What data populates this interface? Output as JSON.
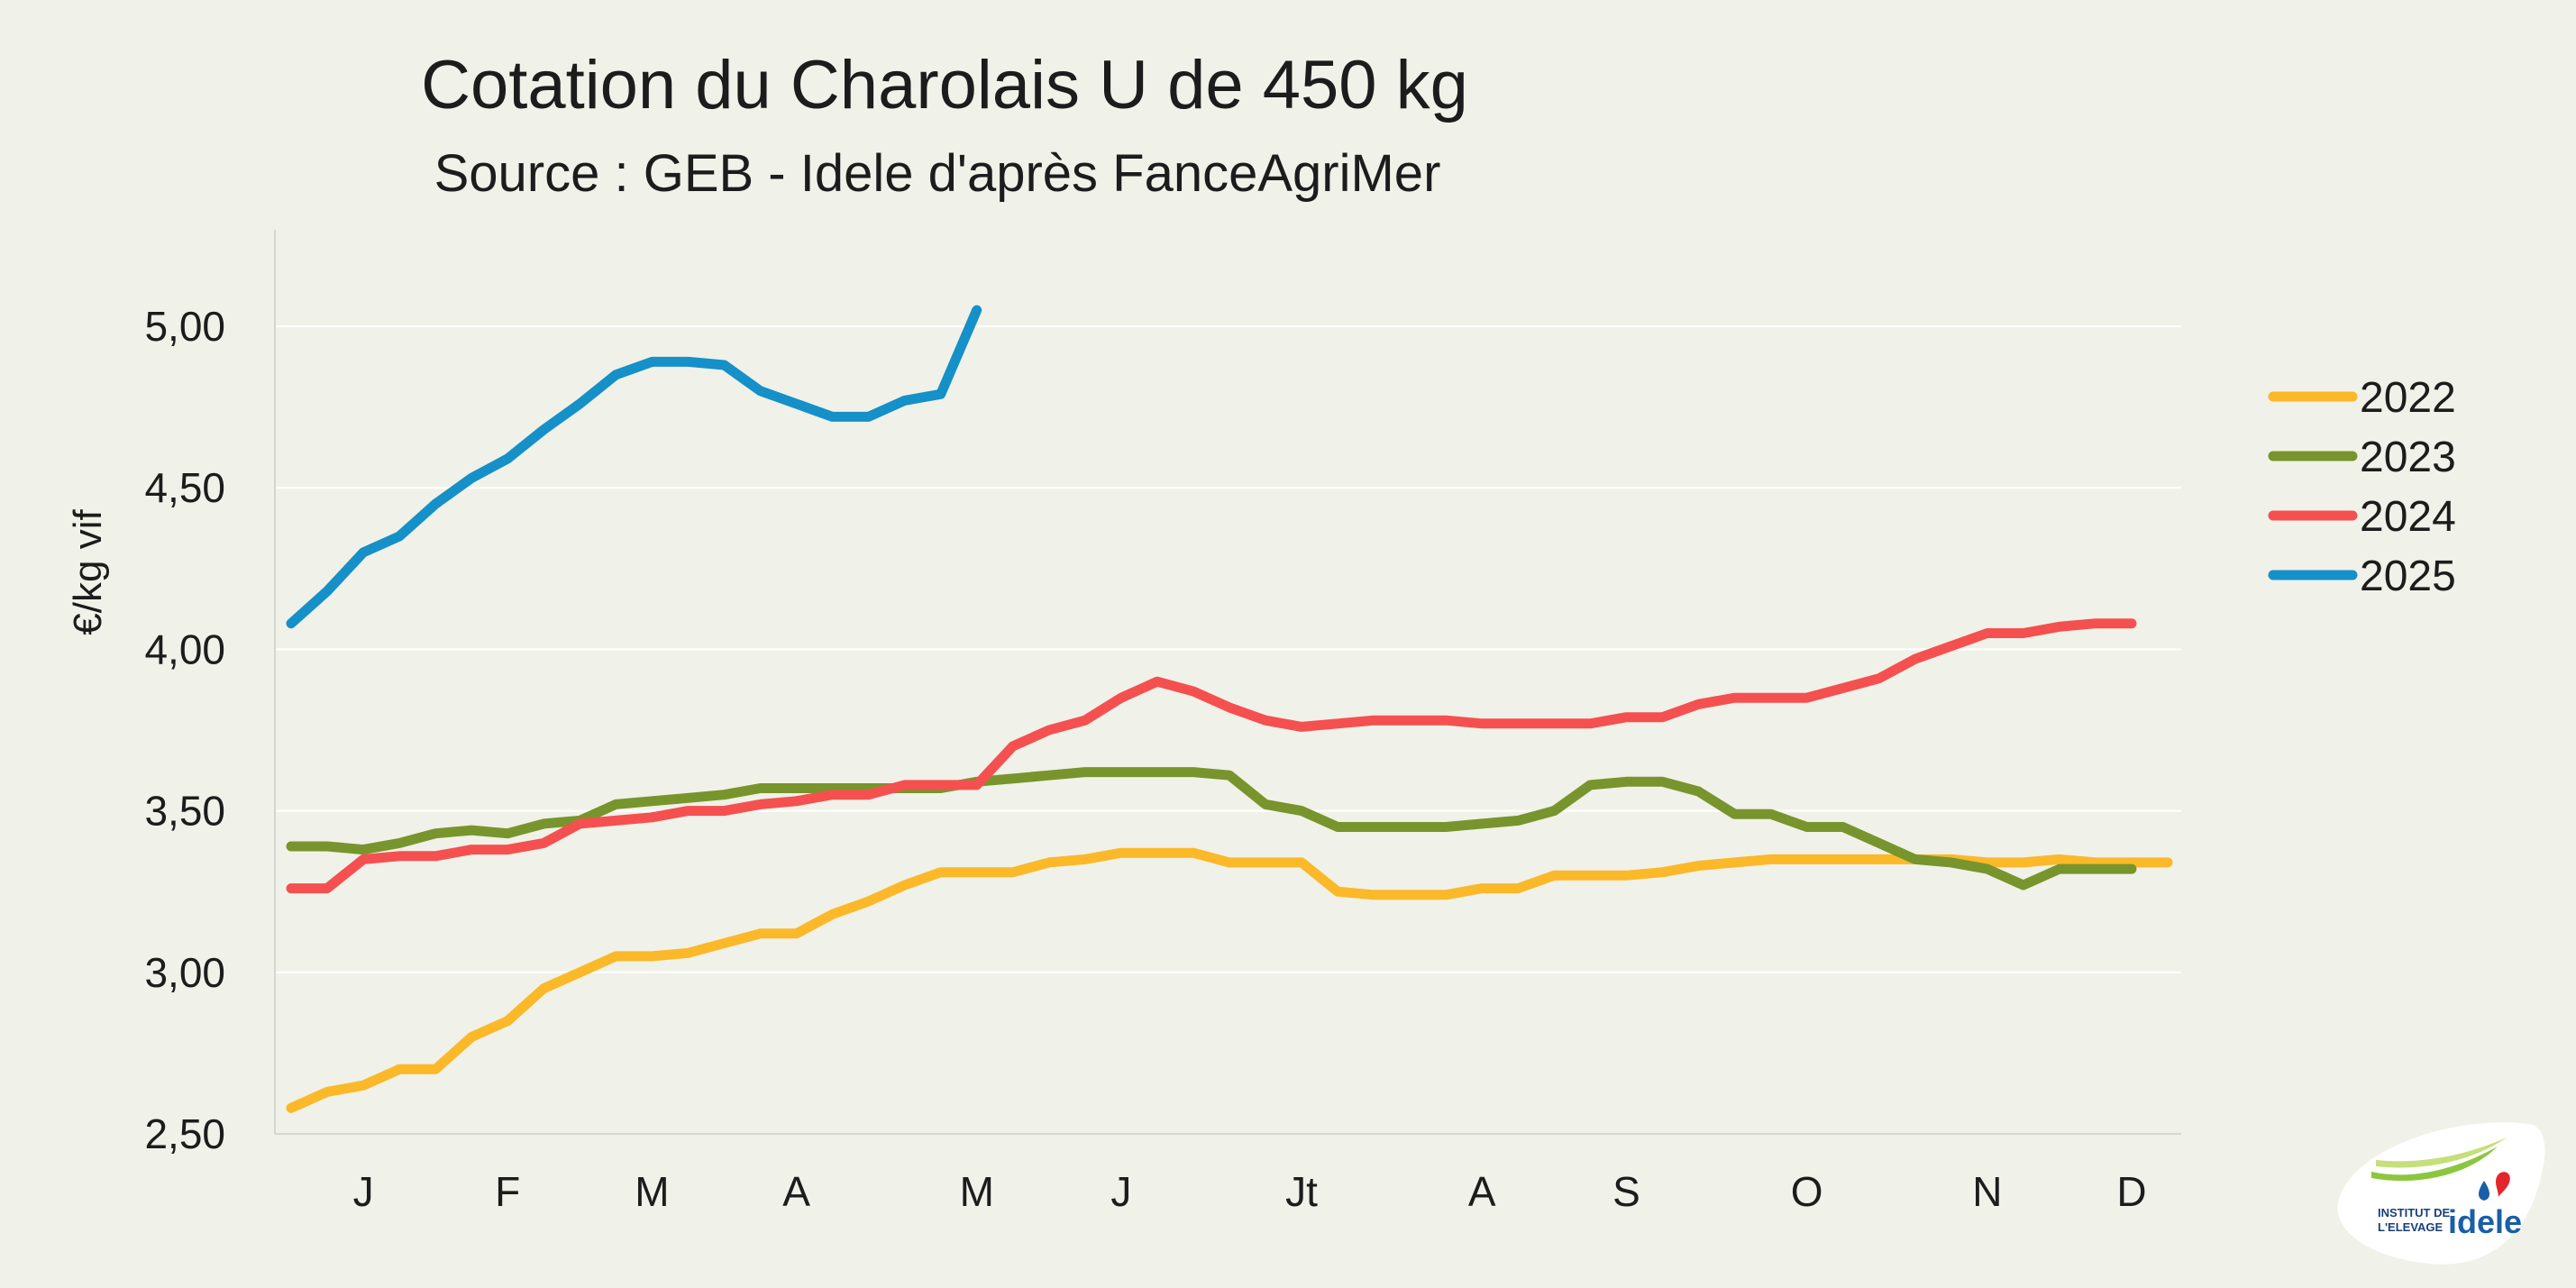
{
  "chart_data": {
    "type": "line",
    "title": "Cotation du Charolais U de 450 kg",
    "subtitle": "Source : GEB - Idele d'après FanceAgriMer",
    "ylabel": "€/kg vif",
    "xlabel": "",
    "ylim": [
      2.5,
      5.3
    ],
    "yticks": [
      2.5,
      3.0,
      3.5,
      4.0,
      4.5,
      5.0
    ],
    "ytick_labels": [
      "2,50",
      "3,00",
      "3,50",
      "4,00",
      "4,50",
      "5,00"
    ],
    "grid": true,
    "x_weeks": 53,
    "month_ticks": [
      {
        "label": "J",
        "week": 3
      },
      {
        "label": "F",
        "week": 7
      },
      {
        "label": "M",
        "week": 11
      },
      {
        "label": "A",
        "week": 15
      },
      {
        "label": "M",
        "week": 20
      },
      {
        "label": "J",
        "week": 24
      },
      {
        "label": "Jt",
        "week": 29
      },
      {
        "label": "A",
        "week": 34
      },
      {
        "label": "S",
        "week": 38
      },
      {
        "label": "O",
        "week": 43
      },
      {
        "label": "N",
        "week": 48
      },
      {
        "label": "D",
        "week": 52
      }
    ],
    "legend_position": "right",
    "series": [
      {
        "name": "2022",
        "color": "#fbb829",
        "values": [
          2.58,
          2.63,
          2.65,
          2.7,
          2.7,
          2.8,
          2.85,
          2.95,
          3.0,
          3.05,
          3.05,
          3.06,
          3.09,
          3.12,
          3.12,
          3.18,
          3.22,
          3.27,
          3.31,
          3.31,
          3.31,
          3.34,
          3.35,
          3.37,
          3.37,
          3.37,
          3.34,
          3.34,
          3.34,
          3.25,
          3.24,
          3.24,
          3.24,
          3.26,
          3.26,
          3.3,
          3.3,
          3.3,
          3.31,
          3.33,
          3.34,
          3.35,
          3.35,
          3.35,
          3.35,
          3.35,
          3.35,
          3.34,
          3.34,
          3.35,
          3.34,
          3.34,
          3.34
        ]
      },
      {
        "name": "2023",
        "color": "#77952c",
        "values": [
          3.39,
          3.39,
          3.38,
          3.4,
          3.43,
          3.44,
          3.43,
          3.46,
          3.47,
          3.52,
          3.53,
          3.54,
          3.55,
          3.57,
          3.57,
          3.57,
          3.57,
          3.57,
          3.57,
          3.59,
          3.6,
          3.61,
          3.62,
          3.62,
          3.62,
          3.62,
          3.61,
          3.52,
          3.5,
          3.45,
          3.45,
          3.45,
          3.45,
          3.46,
          3.47,
          3.5,
          3.58,
          3.59,
          3.59,
          3.56,
          3.49,
          3.49,
          3.45,
          3.45,
          3.4,
          3.35,
          3.34,
          3.32,
          3.27,
          3.32,
          3.32,
          3.32
        ]
      },
      {
        "name": "2024",
        "color": "#f55050",
        "values": [
          3.26,
          3.26,
          3.35,
          3.36,
          3.36,
          3.38,
          3.38,
          3.4,
          3.46,
          3.47,
          3.48,
          3.5,
          3.5,
          3.52,
          3.53,
          3.55,
          3.55,
          3.58,
          3.58,
          3.58,
          3.7,
          3.75,
          3.78,
          3.85,
          3.9,
          3.87,
          3.82,
          3.78,
          3.76,
          3.77,
          3.78,
          3.78,
          3.78,
          3.77,
          3.77,
          3.77,
          3.77,
          3.79,
          3.79,
          3.83,
          3.85,
          3.85,
          3.85,
          3.88,
          3.91,
          3.97,
          4.01,
          4.05,
          4.05,
          4.07,
          4.08,
          4.08
        ]
      },
      {
        "name": "2025",
        "color": "#1590c8",
        "values": [
          4.08,
          4.18,
          4.3,
          4.35,
          4.45,
          4.53,
          4.59,
          4.68,
          4.76,
          4.85,
          4.89,
          4.89,
          4.88,
          4.8,
          4.76,
          4.72,
          4.72,
          4.77,
          4.79,
          5.05
        ]
      }
    ]
  },
  "logo": {
    "line1": "INSTITUT DE",
    "line2": "L'ELEVAGE",
    "brand": "idele"
  },
  "colors": {
    "background": "#f0f1e8",
    "grid": "#ffffff",
    "axis": "#d6d6d0",
    "text": "#1c1c1c"
  }
}
